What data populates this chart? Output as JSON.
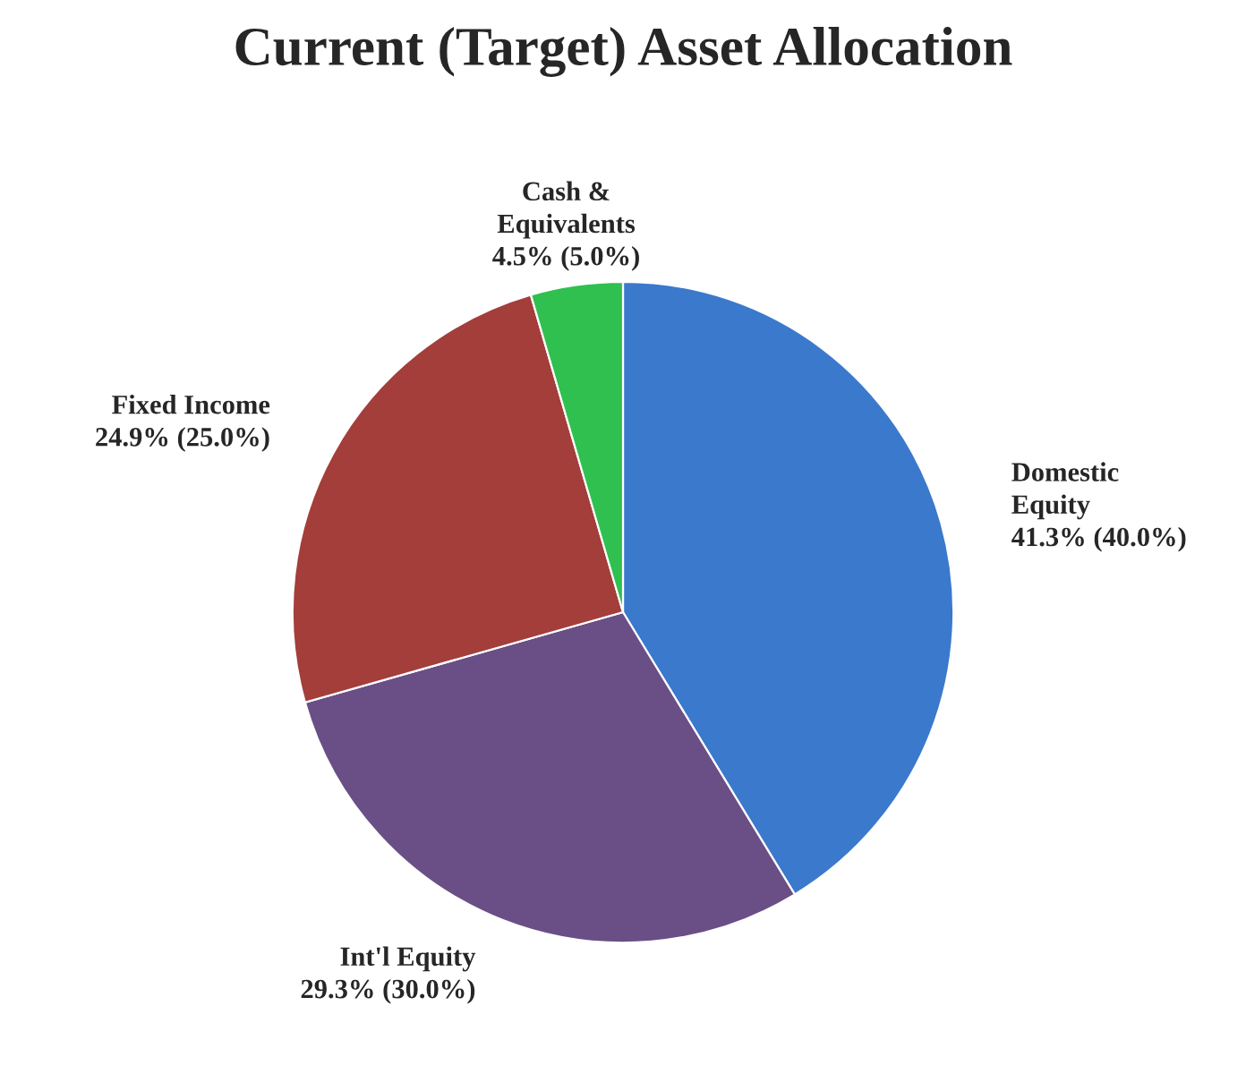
{
  "chart_data": {
    "type": "pie",
    "title": "Current (Target) Asset Allocation",
    "categories": [
      "Domestic\nEquity",
      "Int'l Equity",
      "Fixed Income",
      "Cash &\nEquivalents"
    ],
    "values": [
      41.3,
      29.3,
      24.9,
      4.5
    ],
    "value_labels": [
      "41.3% (40.0%)",
      "29.3% (30.0%)",
      "24.9% (25.0%)",
      "4.5% (5.0%)"
    ],
    "colors": [
      "#3b79cc",
      "#6a4f86",
      "#a33e3b",
      "#2fc04f"
    ],
    "legend": false
  }
}
